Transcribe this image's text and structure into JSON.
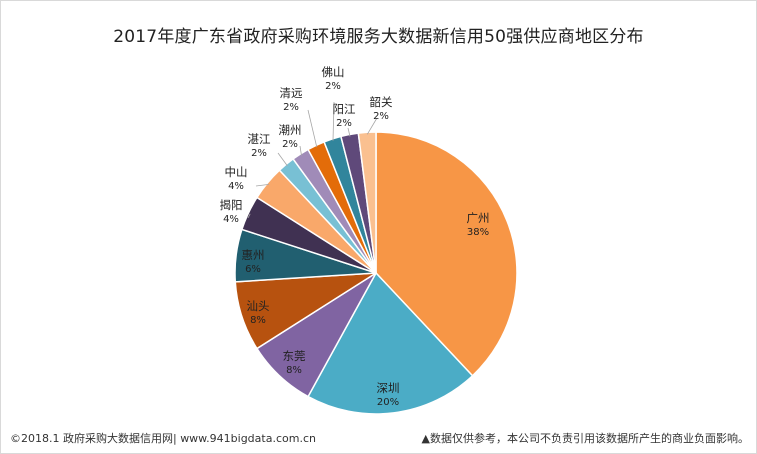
{
  "chart_data": {
    "type": "pie",
    "title": "2017年度广东省政府采购环境服务大数据新信用50强供应商地区分布",
    "categories": [
      "广州",
      "深圳",
      "东莞",
      "汕头",
      "惠州",
      "揭阳",
      "中山",
      "湛江",
      "潮州",
      "清远",
      "佛山",
      "阳江",
      "韶关"
    ],
    "values": [
      38,
      20,
      8,
      8,
      6,
      4,
      4,
      2,
      2,
      2,
      2,
      2,
      2
    ],
    "labels": [
      "38%",
      "20%",
      "8%",
      "8%",
      "6%",
      "4%",
      "4%",
      "2%",
      "2%",
      "2%",
      "2%",
      "2%",
      "2%"
    ],
    "colors": [
      "#F79646",
      "#4BACC6",
      "#8064A2",
      "#B7520F",
      "#215F70",
      "#403152",
      "#F9A86A",
      "#78C0D4",
      "#A08BB8",
      "#E36C09",
      "#31859C",
      "#5F497A",
      "#FAC090"
    ],
    "legend": "none"
  },
  "footer": {
    "left": "©2018.1 政府采购大数据信用网| www.941bigdata.com.cn",
    "right": "▲数据仅供参考，本公司不负责引用该数据所产生的商业负面影响。"
  }
}
